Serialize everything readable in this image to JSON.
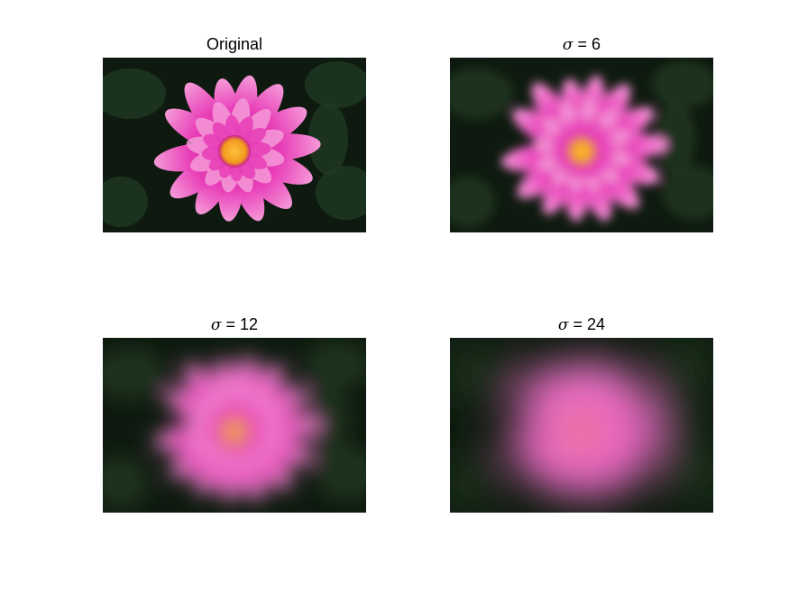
{
  "figure": {
    "panels": [
      {
        "id": "original",
        "title_text": "Original",
        "has_sigma": false,
        "blur": 0
      },
      {
        "id": "sigma6",
        "sigma_symbol": "σ",
        "title_text": " = 6",
        "has_sigma": true,
        "blur": 6
      },
      {
        "id": "sigma12",
        "sigma_symbol": "σ",
        "title_text": " = 12",
        "has_sigma": true,
        "blur": 12
      },
      {
        "id": "sigma24",
        "sigma_symbol": "σ",
        "title_text": " = 24",
        "has_sigma": true,
        "blur": 24
      }
    ],
    "colors": {
      "background_dark": "#0e1a0f",
      "leaf_dark": "#1f3a22",
      "petal_pink": "#e83fb8",
      "petal_light": "#f59ad8",
      "petal_deep": "#c81f8e",
      "center_orange": "#f29a1f",
      "center_yellow": "#ffc23a"
    }
  }
}
